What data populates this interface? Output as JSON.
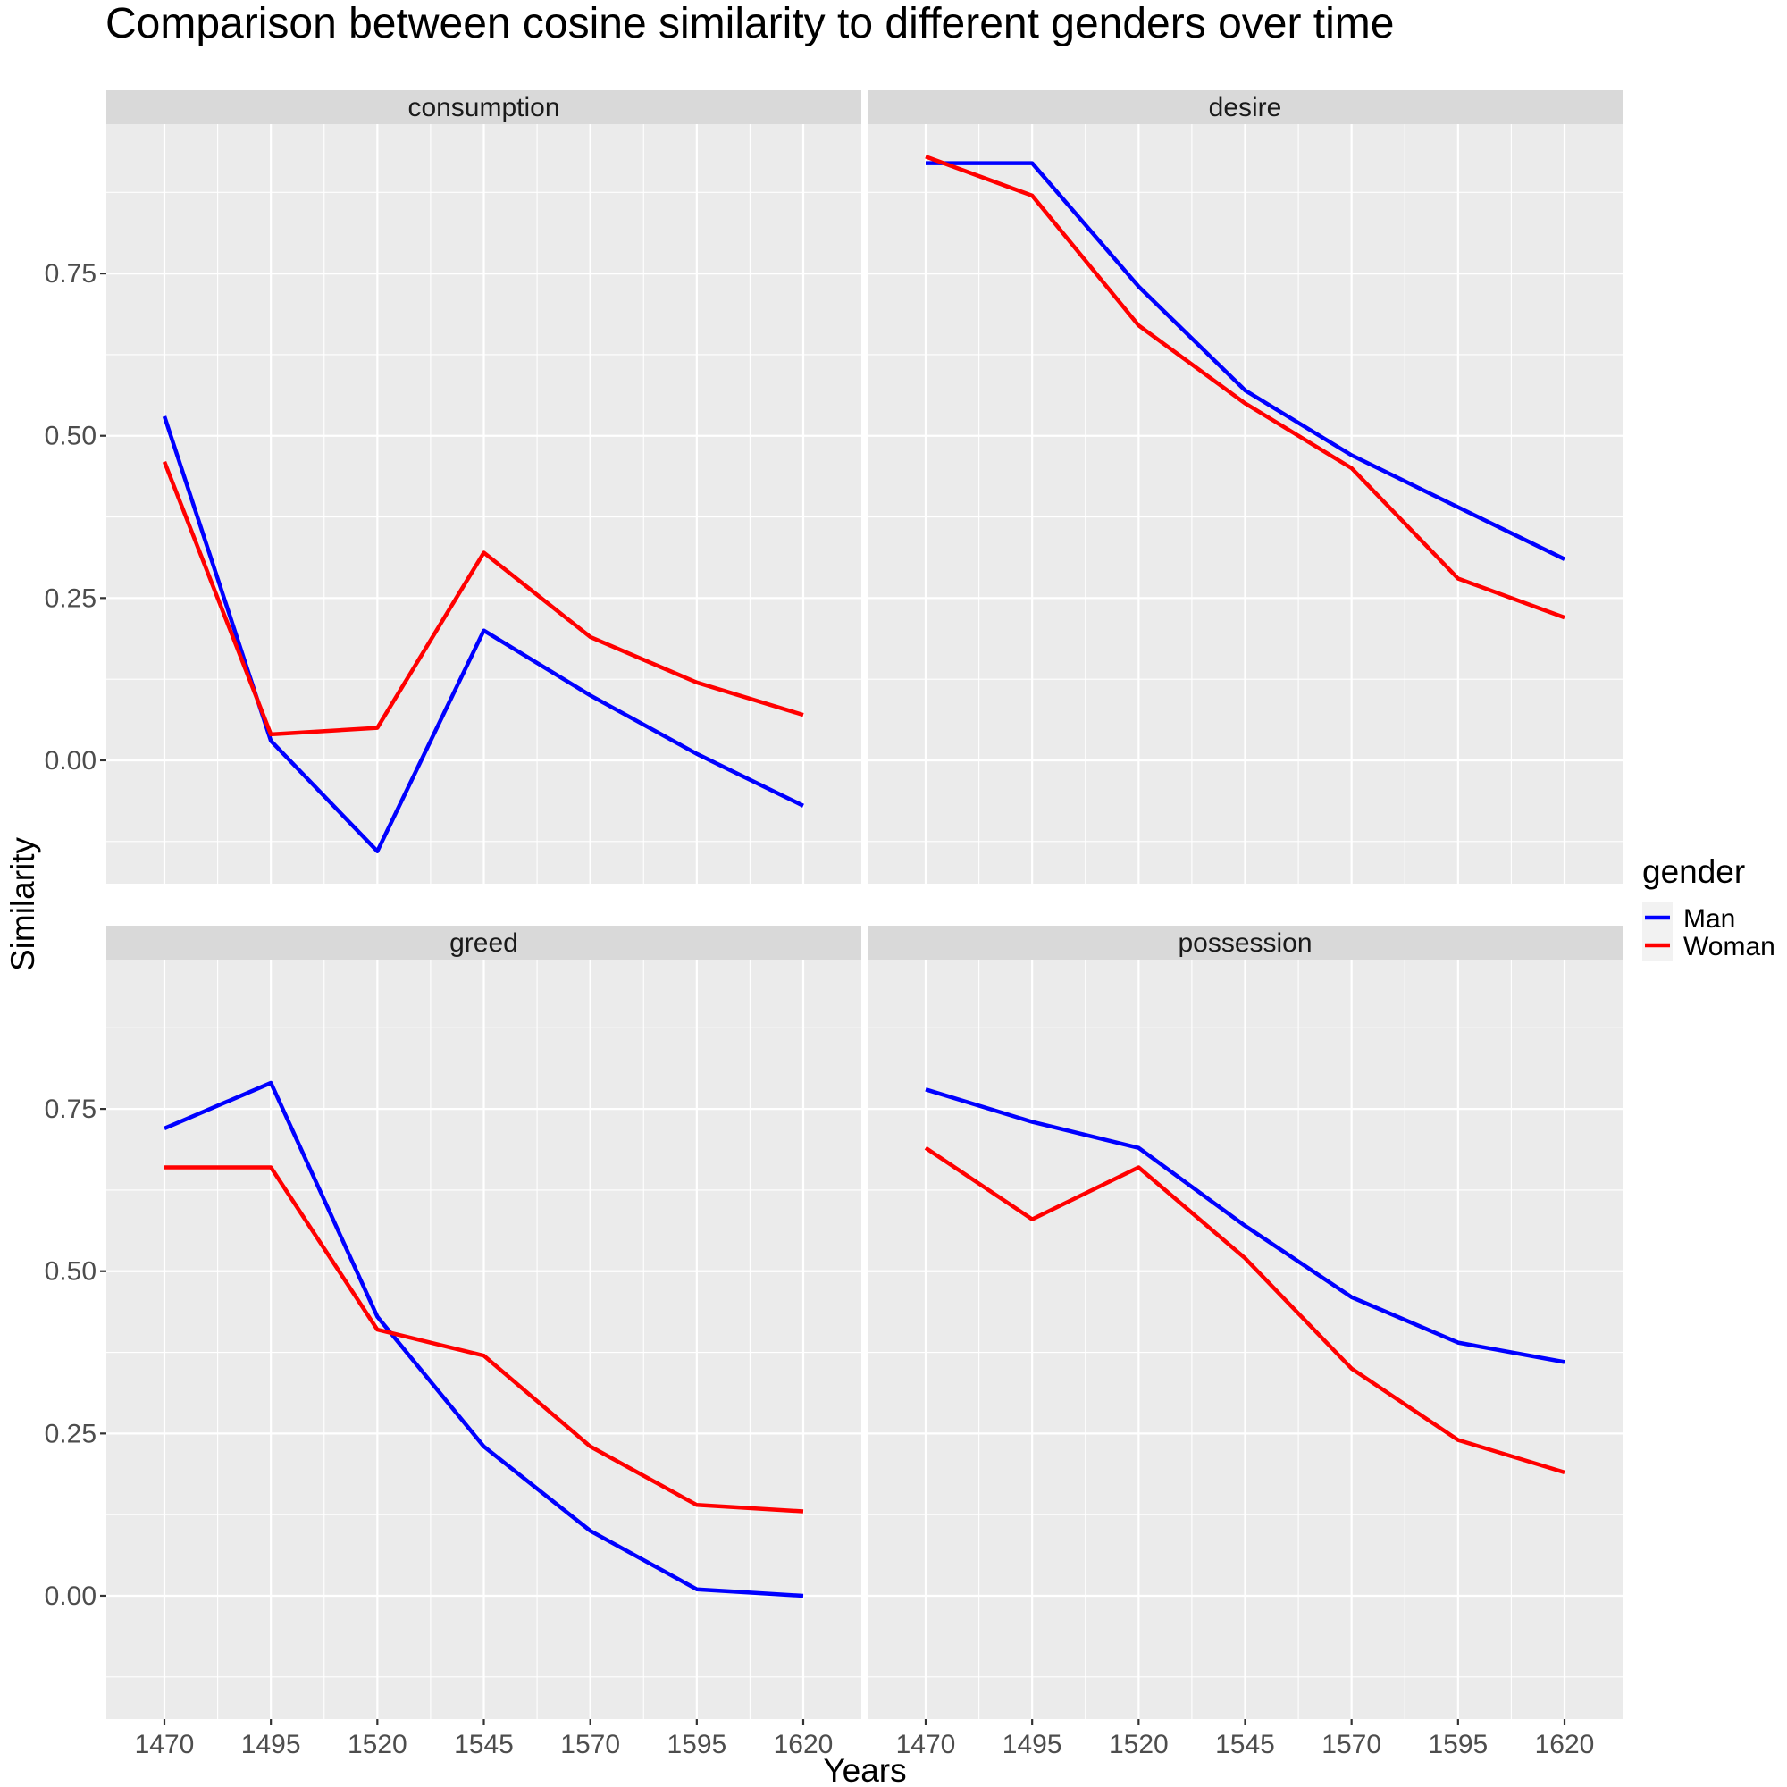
{
  "chart_data": {
    "type": "line",
    "title": "Comparison between cosine similarity to different genders over time",
    "xlabel": "Years",
    "ylabel": "Similarity",
    "x": [
      1470,
      1495,
      1520,
      1545,
      1570,
      1595,
      1620
    ],
    "x_ticks": [
      "1470",
      "1495",
      "1520",
      "1545",
      "1570",
      "1595",
      "1620"
    ],
    "y_ticks": [
      "0.00",
      "0.25",
      "0.50",
      "0.75"
    ],
    "ylim": [
      -0.19,
      0.98
    ],
    "grid": true,
    "legend": {
      "title": "gender",
      "position": "right",
      "entries": [
        "Man",
        "Woman"
      ]
    },
    "colors": {
      "Man": "#0000ff",
      "Woman": "#ff0000"
    },
    "panels": [
      {
        "name": "consumption",
        "series": [
          {
            "name": "Man",
            "values": [
              0.53,
              0.03,
              -0.14,
              0.2,
              0.1,
              0.01,
              -0.07
            ]
          },
          {
            "name": "Woman",
            "values": [
              0.46,
              0.04,
              0.05,
              0.32,
              0.19,
              0.12,
              0.07
            ]
          }
        ]
      },
      {
        "name": "desire",
        "series": [
          {
            "name": "Man",
            "values": [
              0.92,
              0.92,
              0.73,
              0.57,
              0.47,
              0.39,
              0.31
            ]
          },
          {
            "name": "Woman",
            "values": [
              0.93,
              0.87,
              0.67,
              0.55,
              0.45,
              0.28,
              0.22
            ]
          }
        ]
      },
      {
        "name": "greed",
        "series": [
          {
            "name": "Man",
            "values": [
              0.72,
              0.79,
              0.43,
              0.23,
              0.1,
              0.01,
              0.0
            ]
          },
          {
            "name": "Woman",
            "values": [
              0.66,
              0.66,
              0.41,
              0.37,
              0.23,
              0.14,
              0.13
            ]
          }
        ]
      },
      {
        "name": "possession",
        "series": [
          {
            "name": "Man",
            "values": [
              0.78,
              0.73,
              0.69,
              0.57,
              0.46,
              0.39,
              0.36
            ]
          },
          {
            "name": "Woman",
            "values": [
              0.69,
              0.58,
              0.66,
              0.52,
              0.35,
              0.24,
              0.19
            ]
          }
        ]
      }
    ]
  }
}
